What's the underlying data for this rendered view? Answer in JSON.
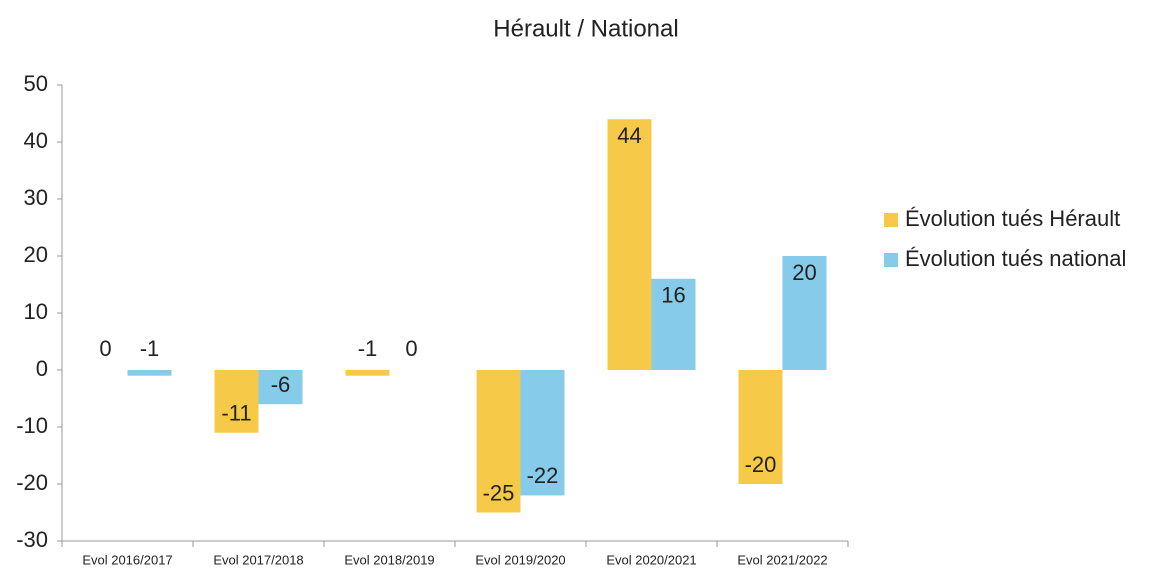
{
  "chart_data": {
    "type": "bar",
    "title": "Hérault / National",
    "categories": [
      "Evol 2016/2017",
      "Evol 2017/2018",
      "Evol 2018/2019",
      "Evol 2019/2020",
      "Evol 2020/2021",
      "Evol 2021/2022"
    ],
    "series": [
      {
        "name": "Évolution tués Hérault",
        "color": "#f7c948",
        "values": [
          0,
          -11,
          -1,
          -25,
          44,
          -20
        ]
      },
      {
        "name": "Évolution tués national",
        "color": "#86cbea",
        "values": [
          -1,
          -6,
          0,
          -22,
          16,
          20
        ]
      }
    ],
    "ylim": [
      -30,
      50
    ],
    "yticks": [
      -30,
      -20,
      -10,
      0,
      10,
      20,
      30,
      40,
      50
    ],
    "grid": false,
    "legend": "right"
  }
}
